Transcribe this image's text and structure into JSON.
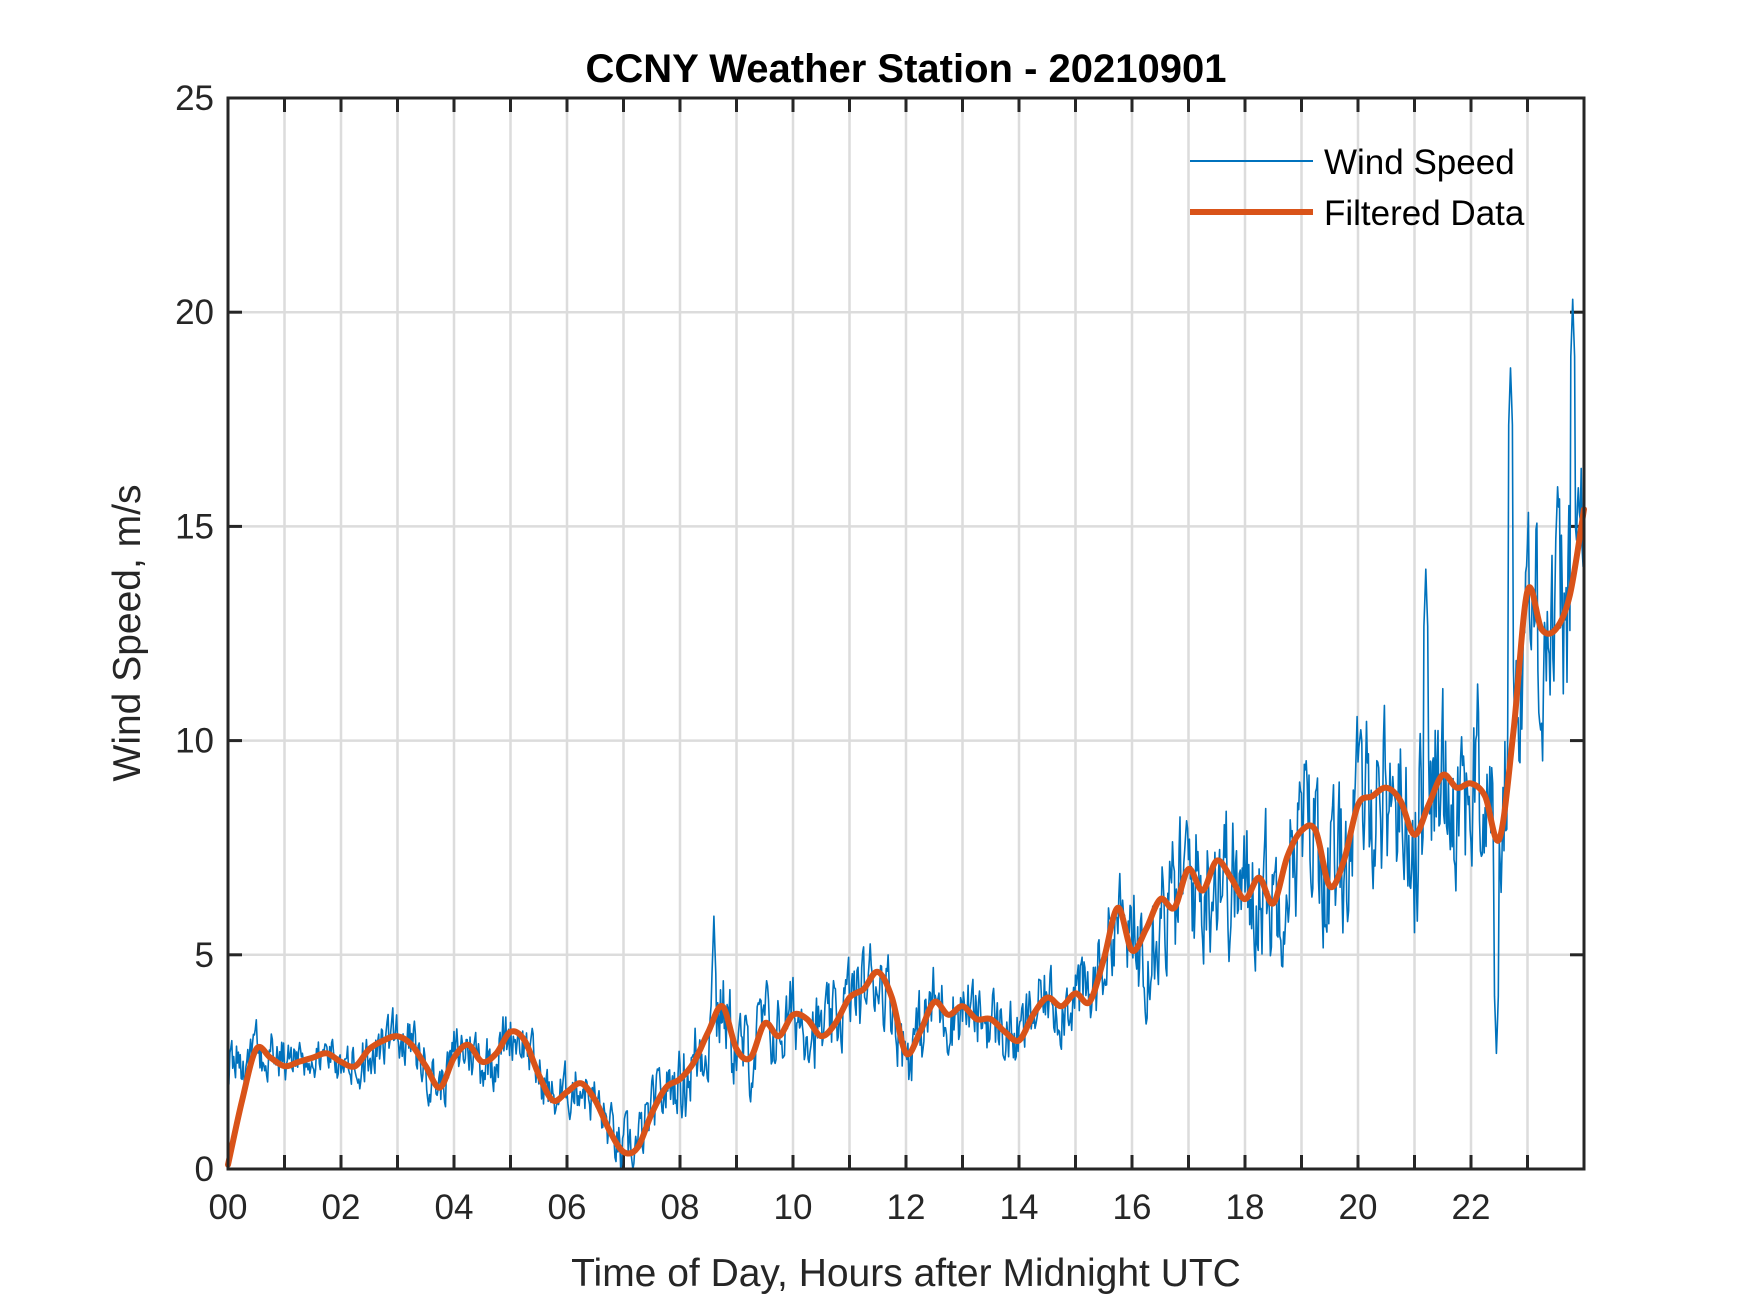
{
  "chart_data": {
    "type": "line",
    "title": "CCNY Weather Station - 20210901",
    "xlabel": "Time of Day, Hours after Midnight UTC",
    "ylabel": "Wind Speed, m/s",
    "xlim": [
      0,
      24
    ],
    "ylim": [
      0,
      25
    ],
    "grid": true,
    "x_ticks": [
      0,
      1,
      2,
      3,
      4,
      5,
      6,
      7,
      8,
      9,
      10,
      11,
      12,
      13,
      14,
      15,
      16,
      17,
      18,
      19,
      20,
      21,
      22,
      23
    ],
    "x_tick_labels": [
      "00",
      "",
      "02",
      "",
      "04",
      "",
      "06",
      "",
      "08",
      "",
      "10",
      "",
      "12",
      "",
      "14",
      "",
      "16",
      "",
      "18",
      "",
      "20",
      "",
      "22",
      ""
    ],
    "y_ticks": [
      0,
      5,
      10,
      15,
      20,
      25
    ],
    "y_tick_labels": [
      "0",
      "5",
      "10",
      "15",
      "20",
      "25"
    ],
    "legend": {
      "placement": "top-right",
      "entries": [
        "Wind Speed",
        "Filtered Data"
      ]
    },
    "colors": {
      "wind_speed": "#0072BD",
      "filtered": "#D95319",
      "axis": "#262626",
      "grid": "#dcdcdc"
    },
    "series": [
      {
        "name": "Filtered Data",
        "x": [
          0,
          0.25,
          0.5,
          0.75,
          1,
          1.25,
          1.5,
          1.75,
          2,
          2.25,
          2.5,
          2.75,
          3,
          3.25,
          3.5,
          3.75,
          4,
          4.25,
          4.5,
          4.75,
          5,
          5.25,
          5.5,
          5.75,
          6,
          6.25,
          6.5,
          6.75,
          7,
          7.25,
          7.5,
          7.75,
          8,
          8.25,
          8.5,
          8.75,
          9,
          9.25,
          9.5,
          9.75,
          10,
          10.25,
          10.5,
          10.75,
          11,
          11.25,
          11.5,
          11.75,
          12,
          12.25,
          12.5,
          12.75,
          13,
          13.25,
          13.5,
          13.75,
          14,
          14.25,
          14.5,
          14.75,
          15,
          15.25,
          15.5,
          15.75,
          16,
          16.25,
          16.5,
          16.75,
          17,
          17.25,
          17.5,
          17.75,
          18,
          18.25,
          18.5,
          18.75,
          19,
          19.25,
          19.5,
          19.75,
          20,
          20.25,
          20.5,
          20.75,
          21,
          21.25,
          21.5,
          21.75,
          22,
          22.25,
          22.5,
          22.75,
          23,
          23.25,
          23.5,
          23.75,
          24
        ],
        "values": [
          0.1,
          1.6,
          2.8,
          2.6,
          2.4,
          2.5,
          2.6,
          2.7,
          2.5,
          2.4,
          2.8,
          3.0,
          3.1,
          2.9,
          2.4,
          1.9,
          2.6,
          2.9,
          2.5,
          2.7,
          3.2,
          3.0,
          2.2,
          1.6,
          1.8,
          2.0,
          1.6,
          0.9,
          0.4,
          0.5,
          1.3,
          1.9,
          2.1,
          2.5,
          3.2,
          3.8,
          2.8,
          2.6,
          3.4,
          3.1,
          3.6,
          3.5,
          3.1,
          3.4,
          4.0,
          4.2,
          4.6,
          4.0,
          2.7,
          3.2,
          3.9,
          3.6,
          3.8,
          3.5,
          3.5,
          3.2,
          3.0,
          3.6,
          4.0,
          3.8,
          4.1,
          3.9,
          4.9,
          6.1,
          5.1,
          5.6,
          6.3,
          6.1,
          7.0,
          6.5,
          7.2,
          6.8,
          6.3,
          6.8,
          6.2,
          7.3,
          7.9,
          7.9,
          6.6,
          7.2,
          8.5,
          8.7,
          8.9,
          8.6,
          7.8,
          8.5,
          9.2,
          8.9,
          9.0,
          8.7,
          7.7,
          10.2,
          13.5,
          12.6,
          12.6,
          13.4,
          15.4
        ]
      },
      {
        "name": "Wind Speed",
        "description": "1-minute raw samples; noisy around the filtered curve",
        "noise_amplitude_by_hour": [
          0.6,
          0.5,
          0.6,
          0.6,
          0.7,
          0.6,
          0.6,
          0.7,
          1.0,
          0.9,
          0.9,
          0.9,
          0.9,
          0.8,
          0.8,
          1.0,
          1.6,
          1.7,
          1.7,
          1.8,
          1.9,
          2.1,
          2.2,
          2.6
        ],
        "peaks": [
          {
            "x": 8.6,
            "y": 5.9
          },
          {
            "x": 22.7,
            "y": 18.7
          },
          {
            "x": 23.8,
            "y": 20.3
          },
          {
            "x": 21.2,
            "y": 14.0
          }
        ],
        "troughs": [
          {
            "x": 6.95,
            "y": 0.0
          },
          {
            "x": 22.45,
            "y": 2.7
          }
        ]
      }
    ]
  }
}
